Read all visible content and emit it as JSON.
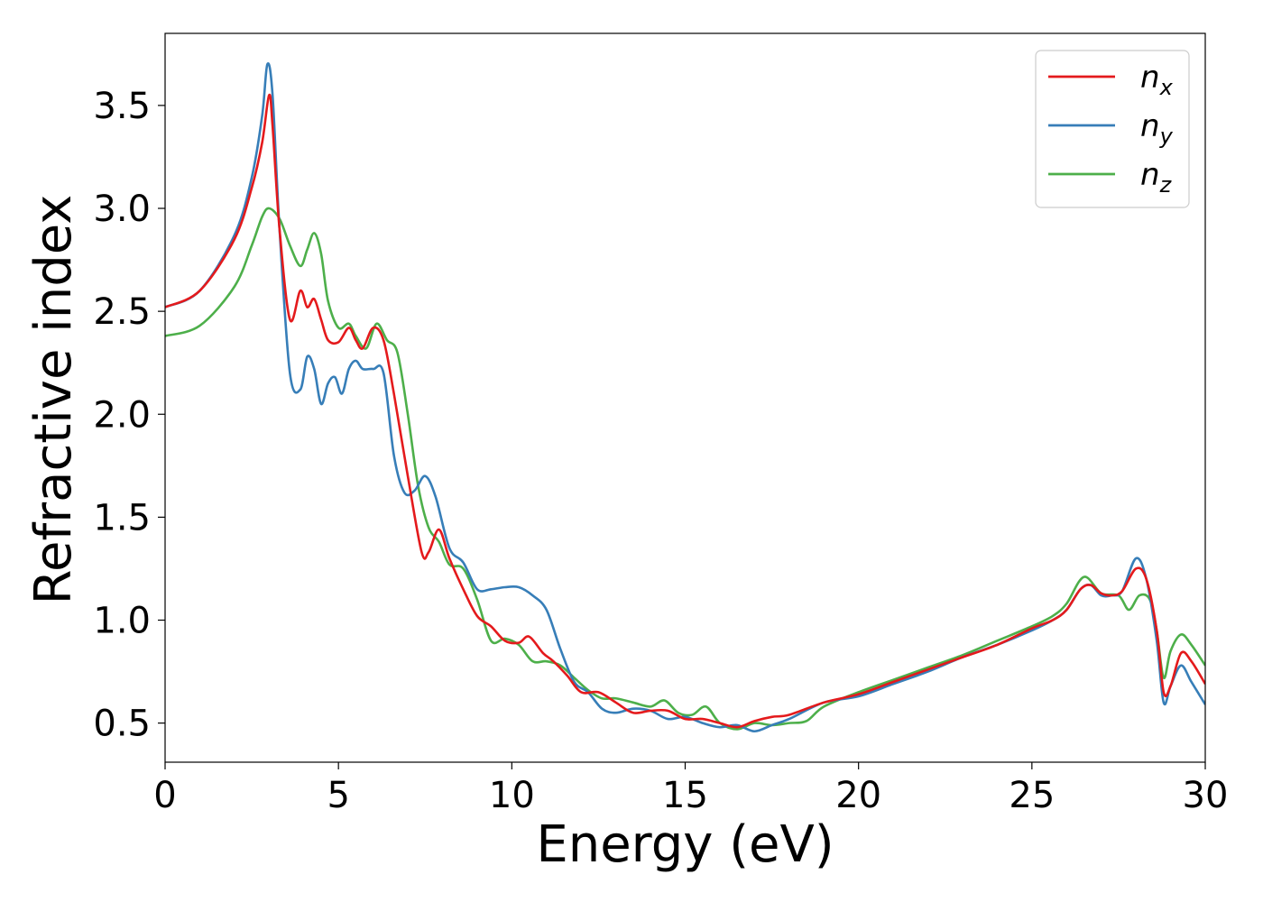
{
  "chart_data": {
    "type": "line",
    "title": "",
    "xlabel": "Energy (eV)",
    "ylabel": "Refractive index",
    "xlim": [
      0,
      30
    ],
    "ylim": [
      0.31,
      3.85
    ],
    "xticks": [
      0,
      5,
      10,
      15,
      20,
      25,
      30
    ],
    "yticks": [
      0.5,
      1.0,
      1.5,
      2.0,
      2.5,
      3.0,
      3.5
    ],
    "xtick_labels": [
      "0",
      "5",
      "10",
      "15",
      "20",
      "25",
      "30"
    ],
    "ytick_labels": [
      "0.5",
      "1.0",
      "1.5",
      "2.0",
      "2.5",
      "3.0",
      "3.5"
    ],
    "grid": false,
    "legend": {
      "placement": "top-right"
    },
    "series": [
      {
        "name": "n",
        "subscript": "x",
        "color": "#e41a1c",
        "x": [
          0,
          1,
          2,
          2.5,
          2.8,
          3.0,
          3.1,
          3.3,
          3.6,
          3.9,
          4.1,
          4.3,
          4.5,
          4.7,
          5.0,
          5.3,
          5.5,
          5.7,
          6.0,
          6.3,
          6.6,
          7.0,
          7.4,
          7.6,
          7.9,
          8.2,
          8.6,
          9.0,
          9.4,
          9.8,
          10.2,
          10.5,
          10.9,
          11.2,
          11.6,
          12.0,
          12.5,
          13.0,
          13.5,
          14.0,
          14.5,
          15.0,
          15.5,
          16.0,
          16.5,
          17.0,
          17.5,
          18.0,
          19.0,
          20.0,
          21.0,
          22.0,
          23.0,
          24.0,
          25.0,
          25.6,
          26.0,
          26.4,
          26.7,
          27.0,
          27.3,
          27.6,
          28.0,
          28.3,
          28.6,
          28.8,
          29.0,
          29.3,
          29.6,
          30.0
        ],
        "y": [
          2.52,
          2.6,
          2.85,
          3.1,
          3.32,
          3.55,
          3.4,
          2.9,
          2.46,
          2.6,
          2.52,
          2.56,
          2.46,
          2.36,
          2.35,
          2.42,
          2.36,
          2.32,
          2.42,
          2.36,
          2.1,
          1.7,
          1.33,
          1.33,
          1.44,
          1.3,
          1.15,
          1.02,
          0.97,
          0.9,
          0.89,
          0.92,
          0.84,
          0.8,
          0.73,
          0.65,
          0.65,
          0.6,
          0.55,
          0.56,
          0.56,
          0.52,
          0.52,
          0.5,
          0.48,
          0.51,
          0.53,
          0.54,
          0.6,
          0.64,
          0.7,
          0.76,
          0.82,
          0.88,
          0.96,
          1.0,
          1.05,
          1.15,
          1.17,
          1.13,
          1.12,
          1.14,
          1.25,
          1.2,
          0.95,
          0.65,
          0.68,
          0.84,
          0.8,
          0.69
        ]
      },
      {
        "name": "n",
        "subscript": "y",
        "color": "#377eb8",
        "x": [
          0,
          1,
          2,
          2.5,
          2.8,
          2.95,
          3.1,
          3.3,
          3.6,
          3.9,
          4.1,
          4.3,
          4.5,
          4.7,
          4.9,
          5.1,
          5.3,
          5.5,
          5.7,
          6.0,
          6.3,
          6.6,
          6.9,
          7.2,
          7.5,
          7.8,
          8.2,
          8.6,
          9.0,
          9.4,
          9.8,
          10.2,
          10.6,
          11.0,
          11.4,
          11.8,
          12.2,
          12.6,
          13.0,
          13.5,
          14.0,
          14.5,
          15.0,
          15.5,
          16.0,
          16.5,
          17.0,
          17.5,
          18.0,
          19.0,
          20.0,
          21.0,
          22.0,
          23.0,
          24.0,
          25.0,
          25.6,
          26.0,
          26.4,
          26.7,
          27.0,
          27.3,
          27.6,
          28.0,
          28.3,
          28.6,
          28.8,
          29.0,
          29.3,
          29.6,
          30.0
        ],
        "y": [
          2.52,
          2.6,
          2.87,
          3.15,
          3.45,
          3.7,
          3.55,
          2.9,
          2.2,
          2.12,
          2.28,
          2.22,
          2.05,
          2.15,
          2.18,
          2.1,
          2.22,
          2.26,
          2.22,
          2.22,
          2.2,
          1.8,
          1.62,
          1.63,
          1.7,
          1.6,
          1.35,
          1.28,
          1.15,
          1.15,
          1.16,
          1.16,
          1.12,
          1.05,
          0.86,
          0.7,
          0.65,
          0.57,
          0.55,
          0.57,
          0.56,
          0.52,
          0.53,
          0.5,
          0.48,
          0.49,
          0.46,
          0.49,
          0.52,
          0.6,
          0.63,
          0.69,
          0.75,
          0.82,
          0.88,
          0.95,
          1.0,
          1.05,
          1.15,
          1.17,
          1.12,
          1.12,
          1.14,
          1.3,
          1.2,
          0.9,
          0.6,
          0.68,
          0.78,
          0.7,
          0.59
        ]
      },
      {
        "name": "n",
        "subscript": "z",
        "color": "#4daf4a",
        "x": [
          0,
          1,
          2,
          2.5,
          2.8,
          3.0,
          3.3,
          3.6,
          3.9,
          4.1,
          4.3,
          4.5,
          4.7,
          5.0,
          5.3,
          5.5,
          5.8,
          6.1,
          6.4,
          6.7,
          7.0,
          7.3,
          7.6,
          7.9,
          8.2,
          8.6,
          9.0,
          9.4,
          9.8,
          10.2,
          10.6,
          11.0,
          11.4,
          11.8,
          12.2,
          12.6,
          13.0,
          13.5,
          14.0,
          14.4,
          14.8,
          15.2,
          15.6,
          16.0,
          16.5,
          17.0,
          17.5,
          18.0,
          18.5,
          19.0,
          20.0,
          21.0,
          22.0,
          23.0,
          24.0,
          25.0,
          25.6,
          26.0,
          26.5,
          27.0,
          27.5,
          27.8,
          28.1,
          28.4,
          28.6,
          28.8,
          29.0,
          29.3,
          29.6,
          30.0
        ],
        "y": [
          2.38,
          2.43,
          2.62,
          2.82,
          2.96,
          3.0,
          2.95,
          2.82,
          2.72,
          2.8,
          2.88,
          2.78,
          2.55,
          2.42,
          2.44,
          2.38,
          2.32,
          2.44,
          2.36,
          2.3,
          2.0,
          1.65,
          1.45,
          1.38,
          1.27,
          1.25,
          1.1,
          0.9,
          0.91,
          0.88,
          0.8,
          0.8,
          0.78,
          0.72,
          0.66,
          0.62,
          0.62,
          0.6,
          0.58,
          0.61,
          0.55,
          0.54,
          0.58,
          0.5,
          0.47,
          0.5,
          0.49,
          0.5,
          0.51,
          0.58,
          0.65,
          0.71,
          0.77,
          0.83,
          0.9,
          0.97,
          1.02,
          1.08,
          1.21,
          1.13,
          1.12,
          1.05,
          1.12,
          1.1,
          0.95,
          0.72,
          0.85,
          0.93,
          0.88,
          0.78
        ]
      }
    ]
  }
}
